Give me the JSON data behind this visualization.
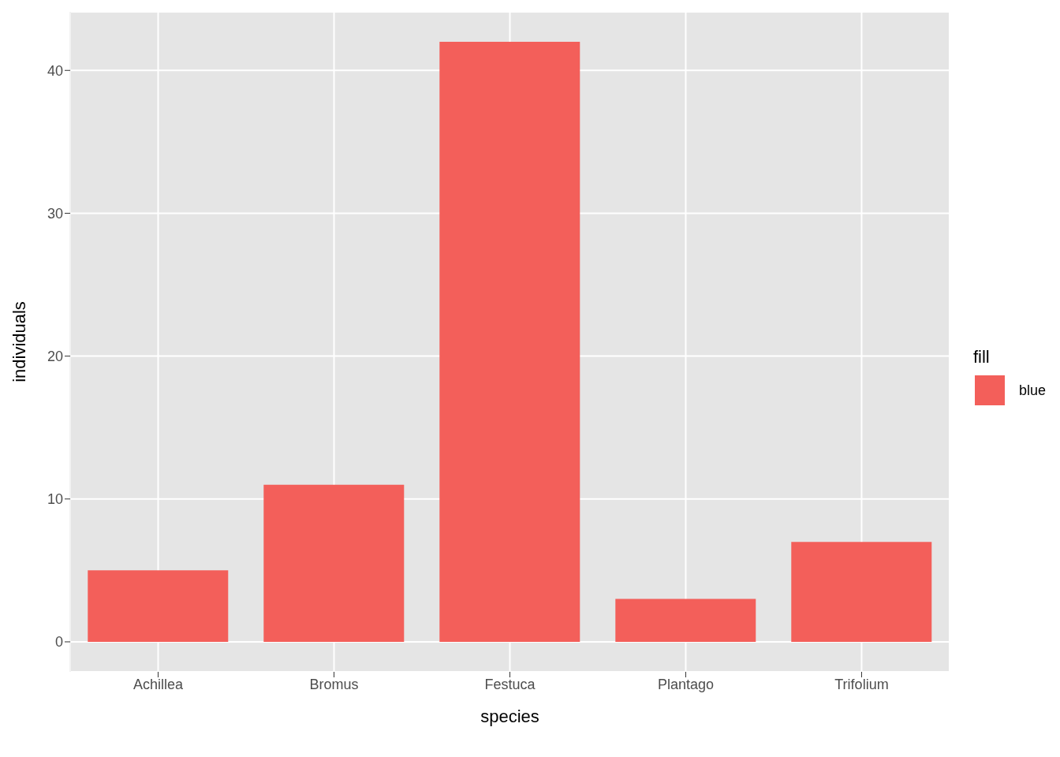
{
  "chart_data": {
    "type": "bar",
    "xlabel": "species",
    "ylabel": "individuals",
    "legend_title": "fill",
    "categories": [
      "Achillea",
      "Bromus",
      "Festuca",
      "Plantago",
      "Trifolium"
    ],
    "series": [
      {
        "name": "blue",
        "color": "#f35f5a",
        "values": [
          5,
          11,
          42,
          3,
          7
        ]
      }
    ],
    "ylim": [
      -2.1,
      44.1
    ],
    "yticks": [
      0,
      10,
      20,
      30,
      40
    ],
    "grid": true,
    "legend": "right"
  }
}
